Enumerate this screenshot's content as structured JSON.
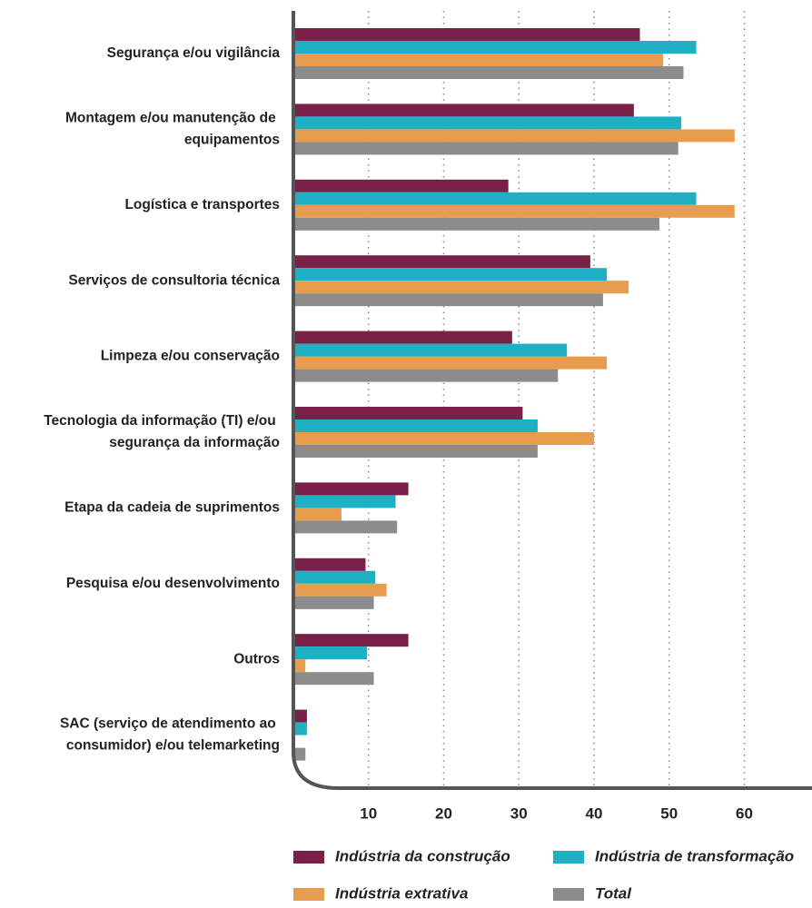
{
  "chart_data": {
    "type": "bar",
    "orientation": "horizontal",
    "categories": [
      "Segurança e/ou vigilância",
      "Montagem e/ou manutenção de equipamentos",
      "Logística e transportes",
      "Serviços de consultoria técnica",
      "Limpeza e/ou conservação",
      "Tecnologia da informação (TI) e/ou segurança da informação",
      "Etapa da cadeia de suprimentos",
      "Pesquisa e/ou desenvolvimento",
      "Outros",
      "SAC (serviço de atendimento ao consumidor) e/ou telemarketing"
    ],
    "series": [
      {
        "name": "Indústria da construção",
        "color": "#7a1f45",
        "values": [
          46.1,
          45.3,
          28.6,
          39.5,
          29.1,
          30.5,
          15.3,
          9.6,
          15.3,
          1.8
        ]
      },
      {
        "name": "Indústria de transformação",
        "color": "#1fb0c4",
        "values": [
          53.6,
          51.6,
          53.6,
          41.7,
          36.4,
          32.5,
          13.6,
          10.9,
          9.8,
          1.8
        ]
      },
      {
        "name": "Indústria extrativa",
        "color": "#e89c4e",
        "values": [
          49.2,
          58.7,
          58.7,
          44.6,
          41.7,
          40,
          6.4,
          12.4,
          1.6,
          0
        ]
      },
      {
        "name": "Total",
        "color": "#8c8c8c",
        "values": [
          51.9,
          51.2,
          48.7,
          41.2,
          35.2,
          32.5,
          13.8,
          10.7,
          10.7,
          1.6
        ]
      }
    ],
    "xlim": [
      0,
      69
    ],
    "xticks": [
      10,
      20,
      30,
      40,
      50,
      60
    ],
    "grid": true
  }
}
